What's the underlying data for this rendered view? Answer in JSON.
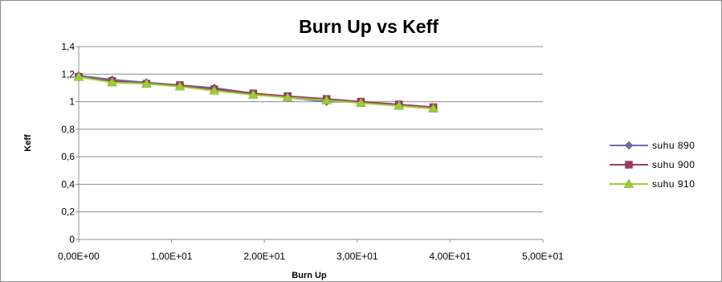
{
  "chart_data": {
    "type": "line",
    "title": "Burn Up vs Keff",
    "xlabel": "Burn Up",
    "ylabel": "Keff",
    "xlim": [
      0,
      50
    ],
    "ylim": [
      0,
      1.4
    ],
    "x_ticks": [
      0,
      10,
      20,
      30,
      40,
      50
    ],
    "x_tick_labels": [
      "0,00E+00",
      "1,00E+01",
      "2,00E+01",
      "3,00E+01",
      "4,00E+01",
      "5,00E+01"
    ],
    "y_ticks": [
      0,
      0.2,
      0.4,
      0.6,
      0.8,
      1.0,
      1.2,
      1.4
    ],
    "y_tick_labels": [
      "0",
      "0,2",
      "0,4",
      "0,6",
      "0,8",
      "1",
      "1,2",
      "1,4"
    ],
    "grid": "horizontal",
    "legend_position": "right",
    "x": [
      0,
      3.6,
      7.3,
      10.9,
      14.6,
      18.8,
      22.5,
      26.7,
      30.4,
      34.5,
      38.2
    ],
    "series": [
      {
        "name": "suhu 890",
        "color": "#6b6fa8",
        "marker": "diamond",
        "values": [
          1.19,
          1.16,
          1.14,
          1.12,
          1.1,
          1.06,
          1.03,
          1.0,
          1.0,
          0.97,
          0.95
        ]
      },
      {
        "name": "suhu 900",
        "color": "#9e3b65",
        "marker": "square",
        "values": [
          1.18,
          1.15,
          1.13,
          1.12,
          1.09,
          1.06,
          1.04,
          1.02,
          1.0,
          0.98,
          0.96
        ]
      },
      {
        "name": "suhu 910",
        "color": "#9acd32",
        "marker": "triangle",
        "values": [
          1.18,
          1.14,
          1.13,
          1.11,
          1.08,
          1.05,
          1.03,
          1.01,
          0.99,
          0.97,
          0.95
        ]
      }
    ]
  }
}
